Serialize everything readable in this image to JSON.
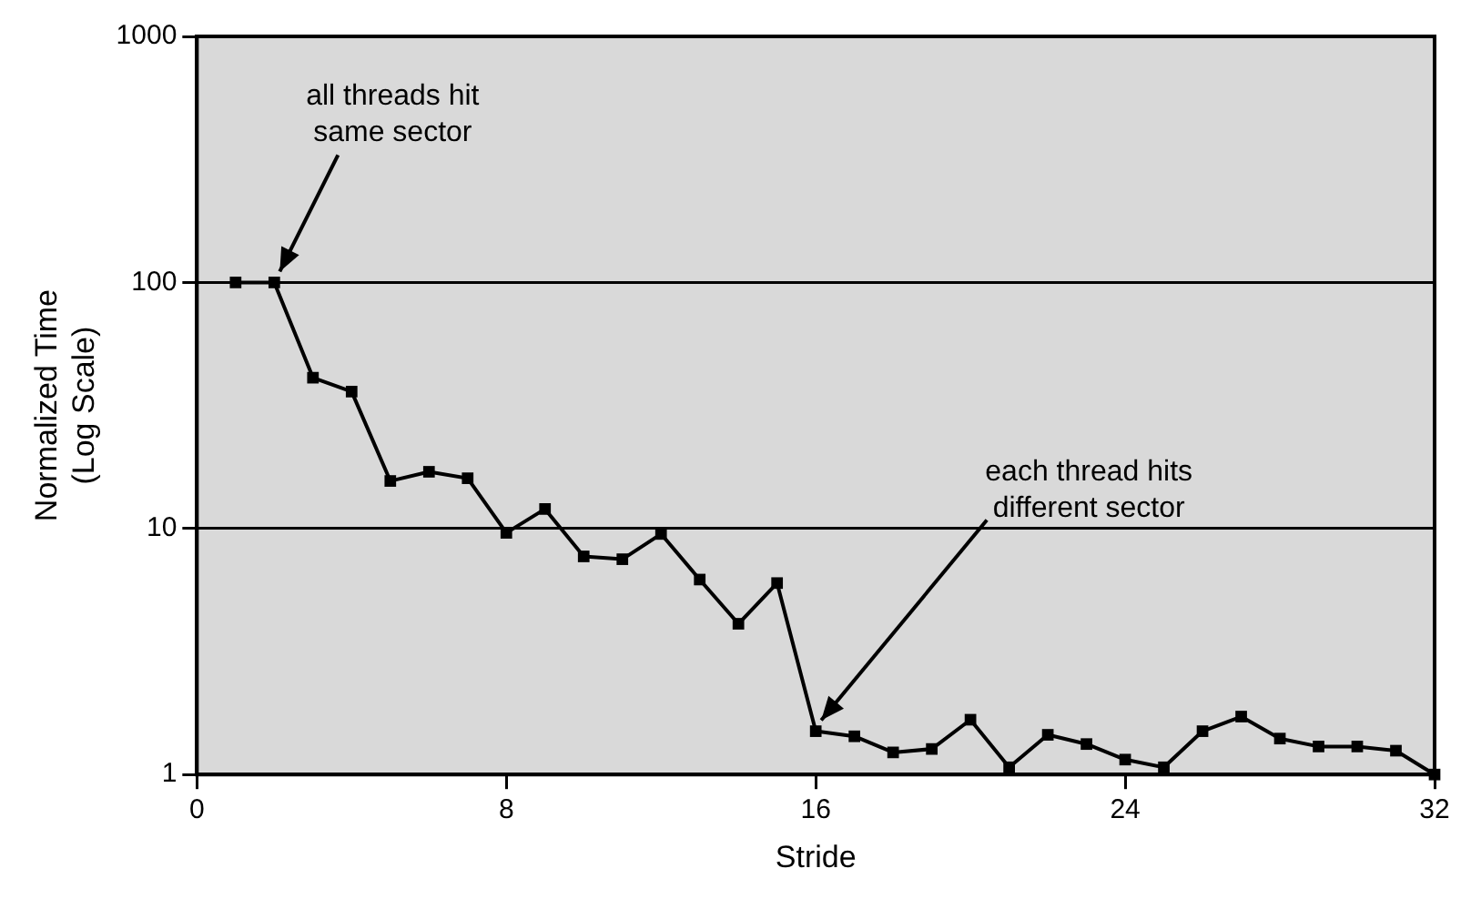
{
  "chart_data": {
    "type": "line",
    "xlabel": "Stride",
    "ylabel": "Normalized Time\n(Log Scale)",
    "x": [
      1,
      2,
      3,
      4,
      5,
      6,
      7,
      8,
      9,
      10,
      11,
      12,
      13,
      14,
      15,
      16,
      17,
      18,
      19,
      20,
      21,
      22,
      23,
      24,
      25,
      26,
      27,
      28,
      29,
      30,
      31,
      32
    ],
    "series": [
      {
        "color": "#000000",
        "values": [
          100,
          100,
          41,
          36,
          15.6,
          17,
          16,
          9.6,
          12,
          7.7,
          7.5,
          9.5,
          6.2,
          4.1,
          6,
          1.5,
          1.43,
          1.23,
          1.27,
          1.67,
          1.07,
          1.45,
          1.33,
          1.15,
          1.07,
          1.5,
          1.72,
          1.4,
          1.3,
          1.3,
          1.25,
          1.0
        ]
      }
    ],
    "xlim": [
      0,
      32
    ],
    "xticks": [
      0,
      8,
      16,
      24,
      32
    ],
    "ylim": [
      1,
      1000
    ],
    "yticks": [
      1,
      10,
      100,
      1000
    ],
    "log": "y",
    "grid": "y",
    "legend": false,
    "marker": "square",
    "line_style": "solid",
    "annotations": [
      {
        "text": "all threads hit\nsame sector",
        "x": 2,
        "y": 100
      },
      {
        "text": "each thread hits\ndifferent sector",
        "x": 16,
        "y": 1.5
      }
    ]
  }
}
